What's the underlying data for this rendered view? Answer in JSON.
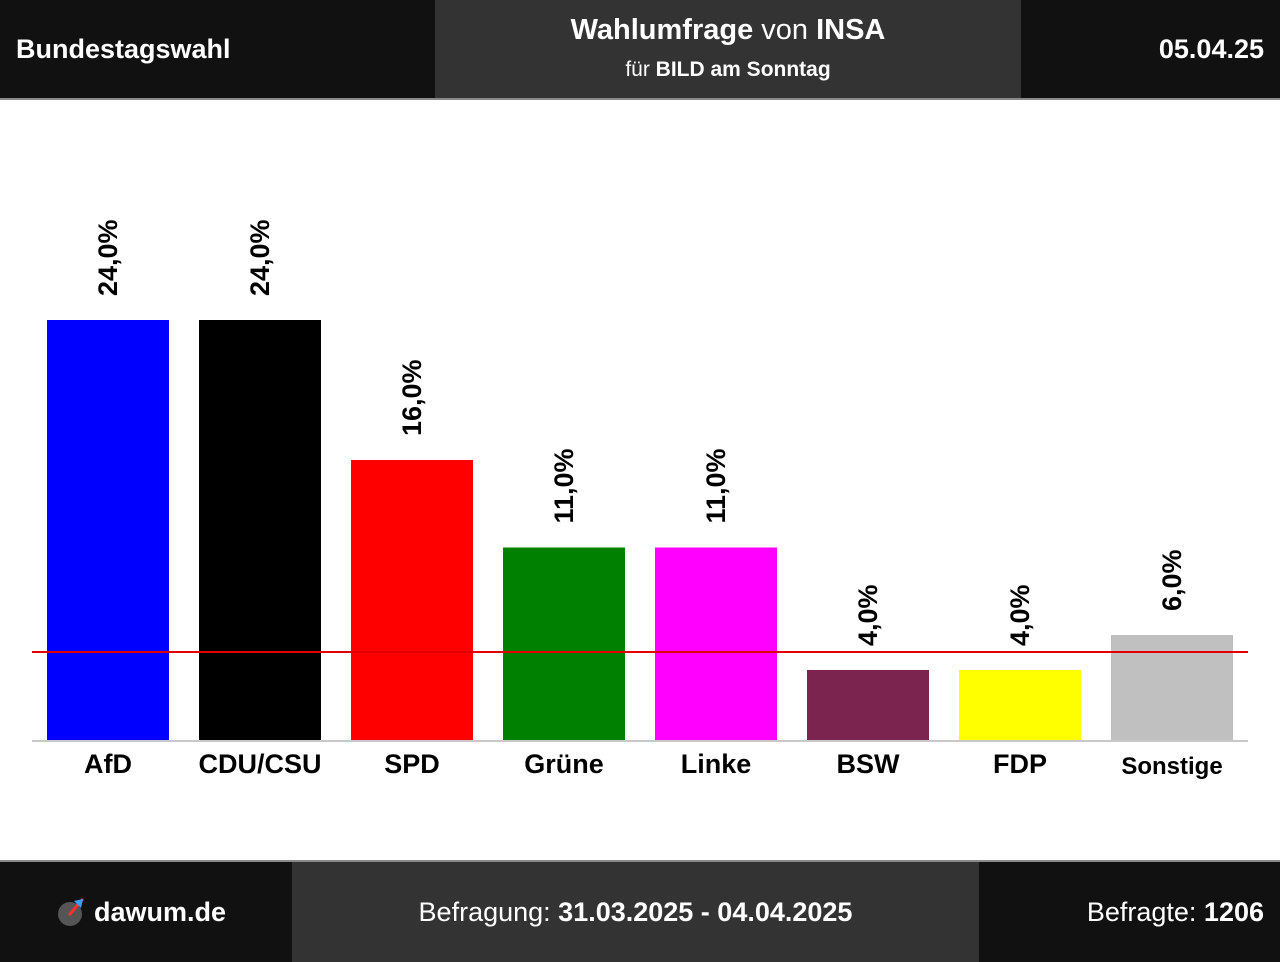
{
  "header": {
    "left_title": "Bundestagswahl",
    "center_word1": "Wahlumfrage",
    "center_word2": "von",
    "center_word3": "INSA",
    "sub_prefix": "für",
    "sub_client": "BILD am Sonntag",
    "date": "05.04.25"
  },
  "footer": {
    "brand": "dawum.de",
    "survey_label": "Befragung:",
    "survey_period": "31.03.2025 - 04.04.2025",
    "respondents_label": "Befragte:",
    "respondents_value": "1206"
  },
  "colors": {
    "threshold_line": "#e30000",
    "axis": "#c8c8c8"
  },
  "icons": {
    "brand_logo": "dawum-logo-icon"
  },
  "chart_data": {
    "type": "bar",
    "categories": [
      "AfD",
      "CDU/CSU",
      "SPD",
      "Grüne",
      "Linke",
      "BSW",
      "FDP",
      "Sonstige"
    ],
    "values": [
      24.0,
      24.0,
      16.0,
      11.0,
      11.0,
      4.0,
      4.0,
      6.0
    ],
    "value_labels": [
      "24,0%",
      "24,0%",
      "16,0%",
      "11,0%",
      "11,0%",
      "4,0%",
      "4,0%",
      "6,0%"
    ],
    "colors": [
      "#0000ff",
      "#000000",
      "#ff0000",
      "#008000",
      "#ff00ff",
      "#7b2450",
      "#ffff00",
      "#c0c0c0"
    ],
    "threshold": 5.0,
    "ylim": [
      0,
      30
    ],
    "grid": false,
    "legend": "none"
  }
}
